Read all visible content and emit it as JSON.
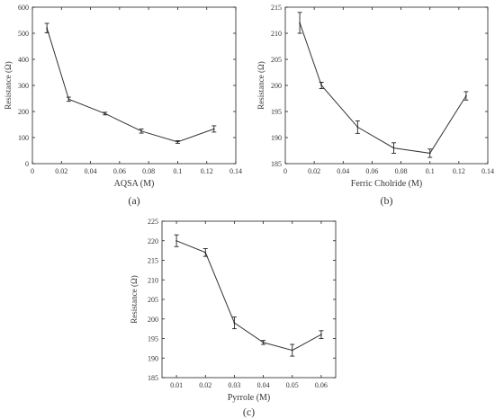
{
  "chart_data": [
    {
      "type": "line",
      "panel_label": "(a)",
      "xlabel": "AQSA (M)",
      "ylabel": "Resistance (Ω)",
      "xlim": [
        0,
        0.14
      ],
      "ylim": [
        0,
        600
      ],
      "xticks": [
        "0",
        "0.02",
        "0.04",
        "0.06",
        "0.08",
        "0.1",
        "0.12",
        "0.14"
      ],
      "yticks": [
        "0",
        "100",
        "200",
        "300",
        "400",
        "500",
        "600"
      ],
      "grid": false,
      "x": [
        0.01,
        0.025,
        0.05,
        0.075,
        0.1,
        0.125
      ],
      "y": [
        520,
        247,
        192,
        125,
        83,
        133
      ],
      "error": [
        18,
        8,
        5,
        8,
        5,
        12
      ]
    },
    {
      "type": "line",
      "panel_label": "(b)",
      "xlabel": "Ferric Cholride (M)",
      "ylabel": "Resistance (Ω)",
      "xlim": [
        0,
        0.14
      ],
      "ylim": [
        185,
        215
      ],
      "xticks": [
        "0",
        "0.02",
        "0.04",
        "0.06",
        "0.08",
        "0.1",
        "0.12",
        "0.14"
      ],
      "yticks": [
        "185",
        "190",
        "195",
        "200",
        "205",
        "210",
        "215"
      ],
      "grid": false,
      "x": [
        0.01,
        0.025,
        0.05,
        0.075,
        0.1,
        0.125
      ],
      "y": [
        212,
        200,
        192,
        188,
        187,
        198
      ],
      "error": [
        2,
        0.6,
        1.2,
        1,
        0.8,
        0.8
      ]
    },
    {
      "type": "line",
      "panel_label": "(c)",
      "xlabel": "Pyrrole (M)",
      "ylabel": "Resistance (Ω)",
      "xlim": [
        0.005,
        0.065
      ],
      "ylim": [
        185,
        225
      ],
      "xticks": [
        "0.01",
        "0.02",
        "0.03",
        "0.04",
        "0.05",
        "0.06"
      ],
      "xtick_values": [
        0.01,
        0.02,
        0.03,
        0.04,
        0.05,
        0.06
      ],
      "yticks": [
        "185",
        "190",
        "195",
        "200",
        "205",
        "210",
        "215",
        "220",
        "225"
      ],
      "grid": false,
      "x": [
        0.01,
        0.02,
        0.03,
        0.04,
        0.05,
        0.06
      ],
      "y": [
        220,
        217,
        199,
        194,
        192,
        196
      ],
      "error": [
        1.5,
        1,
        1.5,
        0.5,
        1.5,
        1
      ]
    }
  ]
}
